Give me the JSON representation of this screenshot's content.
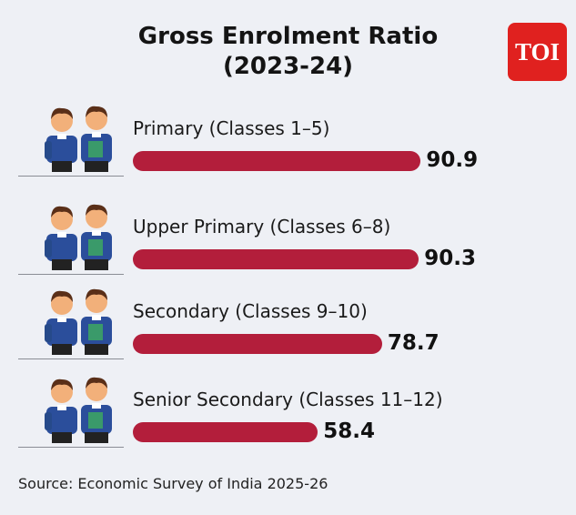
{
  "title_line1": "Gross Enrolment Ratio",
  "title_line2": "(2023-24)",
  "logo": "TOI",
  "source": "Source: Economic Survey of India 2025-26",
  "colors": {
    "bar": "#b31e3b",
    "logo": "#e0211f",
    "background": "#eef0f5"
  },
  "chart_data": {
    "type": "bar",
    "orientation": "horizontal",
    "title": "Gross Enrolment Ratio (2023-24)",
    "categories": [
      "Primary (Classes 1–5)",
      "Upper Primary (Classes 6–8)",
      "Secondary (Classes 9–10)",
      "Senior Secondary (Classes 11–12)"
    ],
    "values": [
      90.9,
      90.3,
      78.7,
      58.4
    ],
    "value_labels": [
      "90.9",
      "90.3",
      "78.7",
      "58.4"
    ],
    "icons": [
      "students-illustration",
      "students-illustration",
      "students-illustration",
      "students-illustration"
    ]
  }
}
